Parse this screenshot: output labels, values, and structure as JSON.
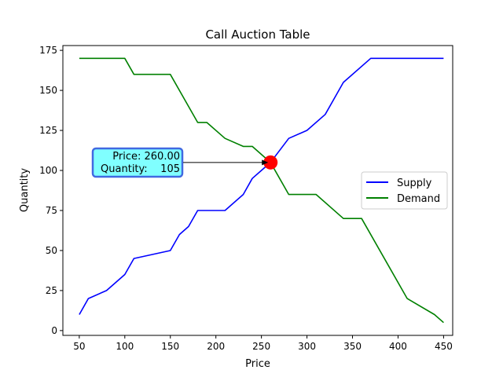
{
  "chart_data": {
    "type": "line",
    "title": "Call Auction Table",
    "xlabel": "Price",
    "ylabel": "Quantity",
    "xlim": [
      32,
      460
    ],
    "ylim": [
      -3,
      178
    ],
    "xticks": [
      50,
      100,
      150,
      200,
      250,
      300,
      350,
      400,
      450
    ],
    "yticks": [
      0,
      25,
      50,
      75,
      100,
      125,
      150,
      175
    ],
    "grid": false,
    "legend_position": "center-right",
    "series": [
      {
        "name": "Supply",
        "color": "#0000ff",
        "x": [
          50,
          60,
          80,
          100,
          110,
          150,
          160,
          170,
          180,
          190,
          200,
          210,
          230,
          240,
          250,
          260,
          280,
          300,
          320,
          340,
          370,
          450
        ],
        "y": [
          10,
          20,
          25,
          35,
          45,
          50,
          60,
          65,
          75,
          75,
          75,
          75,
          85,
          95,
          100,
          105,
          120,
          125,
          135,
          155,
          170,
          170
        ]
      },
      {
        "name": "Demand",
        "color": "#008000",
        "x": [
          50,
          100,
          110,
          150,
          180,
          190,
          210,
          230,
          240,
          250,
          260,
          280,
          310,
          340,
          360,
          410,
          440,
          450
        ],
        "y": [
          170,
          170,
          160,
          160,
          130,
          130,
          120,
          115,
          115,
          110,
          105,
          85,
          85,
          70,
          70,
          20,
          10,
          5
        ]
      }
    ],
    "equilibrium": {
      "price": 260,
      "quantity": 105,
      "marker_color": "#ff0000"
    },
    "annotation": {
      "line1": "Price: 260.00",
      "line2": "Quantity:    105",
      "box_fill": "#80ffff",
      "box_border": "#4169e1"
    }
  }
}
